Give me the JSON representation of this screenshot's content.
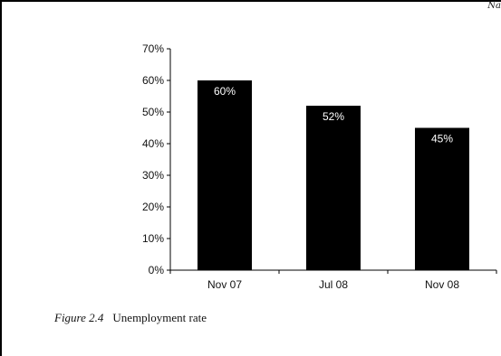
{
  "page": {
    "corner_text": "Na"
  },
  "caption": {
    "figure_number": "Figure 2.4",
    "text": "Unemployment rate"
  },
  "chart_data": {
    "type": "bar",
    "categories": [
      "Nov 07",
      "Jul 08",
      "Nov 08"
    ],
    "values": [
      60,
      52,
      45
    ],
    "value_labels": [
      "60%",
      "52%",
      "45%"
    ],
    "title": "",
    "xlabel": "",
    "ylabel": "",
    "ylim": [
      0,
      70
    ],
    "yticks": [
      0,
      10,
      20,
      30,
      40,
      50,
      60,
      70
    ],
    "ytick_labels": [
      "0%",
      "10%",
      "20%",
      "30%",
      "40%",
      "50%",
      "60%",
      "70%"
    ],
    "grid": false,
    "legend": "none",
    "bar_color": "#000000",
    "label_color": "#ffffff"
  }
}
